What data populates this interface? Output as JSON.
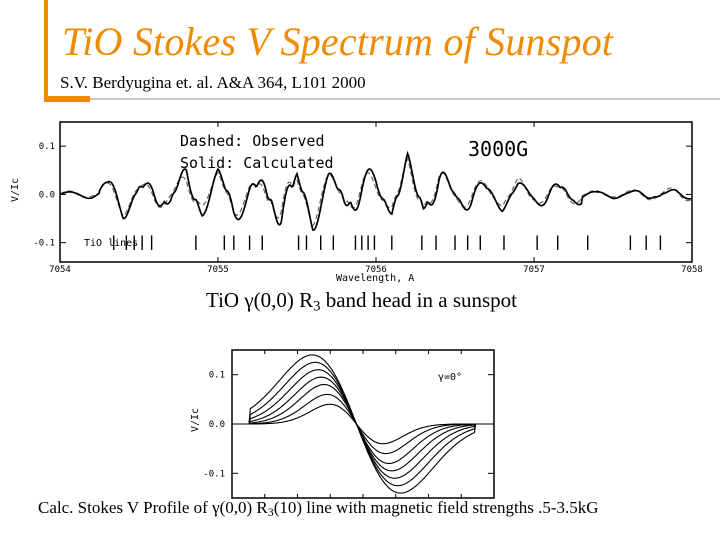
{
  "slide": {
    "title": "TiO Stokes V Spectrum of Sunspot",
    "citation": "S.V. Berdyugina et. al. A&A 364, L101 2000",
    "caption1": {
      "prefix": "TiO ",
      "greek": "γ",
      "mid": "(0,0) R",
      "sub": "3",
      "suffix": " band head in a sunspot"
    },
    "caption2": {
      "prefix": "Calc. Stokes V Profile of ",
      "greek": "γ",
      "mid": "(0,0) R",
      "sub": "3",
      "suffix": "(10) line with magnetic field strengths .5-3.5kG"
    }
  },
  "chart_data": [
    {
      "type": "line",
      "legend_text": [
        "Dashed: Observed",
        "Solid: Calculated"
      ],
      "annotation": "3000G",
      "ylabel": "V/Ic",
      "xlabel": "Wavelength, A",
      "xlim": [
        7054,
        7058
      ],
      "ylim": [
        -0.14,
        0.15
      ],
      "x_ticks": [
        "7054",
        "7055",
        "7056",
        "7057",
        "7058"
      ],
      "y_ticks": [
        "0.1",
        "0.0",
        "-0.1"
      ],
      "lines_label": "TiO lines",
      "line_positions": [
        7054.34,
        7054.42,
        7054.47,
        7054.52,
        7054.58,
        7054.86,
        7055.04,
        7055.1,
        7055.2,
        7055.28,
        7055.51,
        7055.56,
        7055.65,
        7055.73,
        7055.87,
        7055.91,
        7055.95,
        7055.99,
        7056.1,
        7056.29,
        7056.38,
        7056.5,
        7056.58,
        7056.66,
        7056.81,
        7057.02,
        7057.15,
        7057.34,
        7057.61,
        7057.71,
        7057.8
      ],
      "series": [
        {
          "name": "Observed",
          "style": "dashed",
          "x": [
            7054.0,
            7054.1,
            7054.2,
            7054.3,
            7054.4,
            7054.5,
            7054.6,
            7054.7,
            7054.8,
            7054.9,
            7055.0,
            7055.1,
            7055.2,
            7055.3,
            7055.4,
            7055.5,
            7055.6,
            7055.7,
            7055.8,
            7055.9,
            7056.0,
            7056.1,
            7056.2,
            7056.3,
            7056.4,
            7056.5,
            7056.6,
            7056.7,
            7056.8,
            7056.9,
            7057.0,
            7057.1,
            7057.2,
            7057.3,
            7057.4,
            7057.5,
            7057.6,
            7057.7,
            7057.8,
            7057.9,
            7058.0
          ],
          "y": [
            0.0,
            0.01,
            0.0,
            0.01,
            0.03,
            0.0,
            0.02,
            0.0,
            0.03,
            -0.01,
            -0.03,
            0.03,
            0.02,
            -0.03,
            0.06,
            -0.02,
            0.05,
            0.03,
            -0.01,
            0.04,
            0.02,
            -0.02,
            0.06,
            -0.01,
            0.04,
            0.0,
            0.02,
            0.01,
            -0.01,
            0.02,
            0.0,
            -0.01,
            0.01,
            0.0,
            0.01,
            0.0,
            0.01,
            0.02,
            0.01,
            0.03,
            0.02
          ]
        },
        {
          "name": "Calculated",
          "style": "solid",
          "x": [
            7054.0,
            7054.1,
            7054.2,
            7054.3,
            7054.4,
            7054.5,
            7054.6,
            7054.7,
            7054.8,
            7054.9,
            7055.0,
            7055.1,
            7055.2,
            7055.3,
            7055.4,
            7055.5,
            7055.6,
            7055.7,
            7055.8,
            7055.9,
            7056.0,
            7056.1,
            7056.2,
            7056.3,
            7056.4,
            7056.5,
            7056.6,
            7056.7,
            7056.8,
            7056.9,
            7057.0,
            7057.1,
            7057.2,
            7057.3,
            7057.4,
            7057.5,
            7057.6,
            7057.7,
            7057.8,
            7057.9,
            7058.0
          ],
          "y": [
            0.0,
            0.0,
            0.01,
            0.01,
            0.04,
            -0.01,
            0.03,
            -0.02,
            0.05,
            -0.03,
            -0.04,
            0.04,
            0.03,
            -0.04,
            0.07,
            -0.03,
            0.06,
            0.04,
            -0.03,
            0.05,
            0.03,
            -0.03,
            0.07,
            -0.02,
            0.05,
            -0.01,
            0.03,
            0.0,
            -0.02,
            0.01,
            0.0,
            -0.02,
            0.01,
            -0.01,
            0.0,
            -0.01,
            0.0,
            0.02,
            -0.01,
            0.02,
            0.01
          ]
        }
      ]
    },
    {
      "type": "line",
      "annotation": "γ=0°",
      "ylabel": "V/Ic",
      "ylim": [
        -0.15,
        0.15
      ],
      "y_ticks": [
        "0.1",
        "0.0",
        "-0.1"
      ],
      "xlim": [
        -1,
        1
      ],
      "series": [
        {
          "field_kG": 0.5,
          "amplitude": 0.04
        },
        {
          "field_kG": 1.0,
          "amplitude": 0.06
        },
        {
          "field_kG": 1.5,
          "amplitude": 0.08
        },
        {
          "field_kG": 2.0,
          "amplitude": 0.095
        },
        {
          "field_kG": 2.5,
          "amplitude": 0.11
        },
        {
          "field_kG": 3.0,
          "amplitude": 0.125
        },
        {
          "field_kG": 3.5,
          "amplitude": 0.14
        }
      ]
    }
  ]
}
